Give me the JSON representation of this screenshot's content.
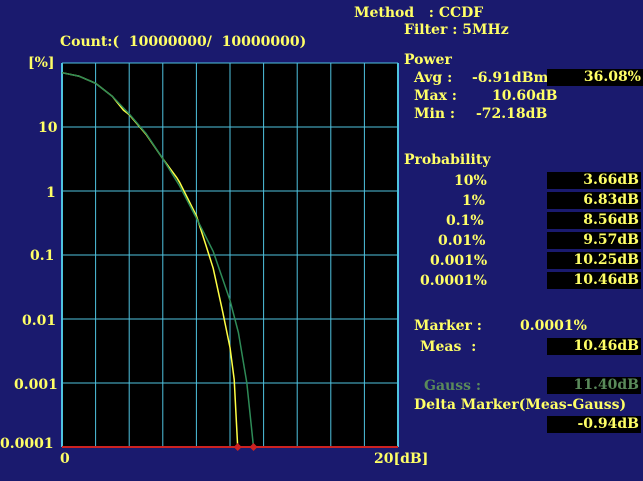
{
  "header": {
    "method": "Method   : CCDF",
    "filter": "Filter : 5MHz",
    "count": "Count:(  10000000/  10000000)"
  },
  "axis": {
    "y_unit": "[%]",
    "y_ticks": [
      "10",
      "1",
      "0.1",
      "0.01",
      "0.001",
      "0.0001"
    ],
    "x_start": "0",
    "x_end": "20[dB]"
  },
  "power": {
    "title": "Power",
    "avg_label": "Avg :",
    "avg_value": "-6.91dBm",
    "avg_percent": "36.08%",
    "max_label": "Max :",
    "max_value": "10.60dB",
    "min_label": "Min :",
    "min_value": "-72.18dB"
  },
  "probability": {
    "title": "Probability",
    "rows": [
      {
        "p": "10%",
        "v": "3.66dB"
      },
      {
        "p": "1%",
        "v": "6.83dB"
      },
      {
        "p": "0.1%",
        "v": "8.56dB"
      },
      {
        "p": "0.01%",
        "v": "9.57dB"
      },
      {
        "p": "0.001%",
        "v": "10.25dB"
      },
      {
        "p": "0.0001%",
        "v": "10.46dB"
      }
    ]
  },
  "marker": {
    "label": "Marker :",
    "value": "0.0001%",
    "meas_label": "Meas  :",
    "meas_value": "10.46dB",
    "gauss_label": "Gauss :",
    "gauss_value": "11.40dB",
    "delta_label": "Delta Marker(Meas-Gauss)",
    "delta_value": "-0.94dB"
  },
  "colors": {
    "background": "#1a1a6e",
    "grid": "#4fc3e0",
    "text": "#ffff66",
    "meas_trace": "#ffff44",
    "gauss_trace": "#2e8b57",
    "baseline": "#cc2222"
  },
  "chart_data": {
    "type": "line",
    "x_range": [
      0,
      20
    ],
    "y_scale": "log",
    "y_range": [
      0.0001,
      100
    ],
    "series": [
      {
        "x": [
          0,
          1,
          2,
          3,
          3.66,
          4,
          5,
          6,
          6.83,
          7,
          8,
          8.56,
          9,
          9.57,
          10,
          10.25,
          10.46
        ],
        "y": [
          36,
          32,
          25,
          16,
          10,
          8.6,
          4.4,
          1.9,
          1,
          0.85,
          0.27,
          0.1,
          0.045,
          0.01,
          0.003,
          0.001,
          0.0001
        ]
      },
      {
        "x": [
          0,
          1,
          2,
          3,
          4,
          5,
          6,
          7,
          8,
          9,
          10,
          10.5,
          11,
          11.4
        ],
        "y": [
          36,
          32,
          25,
          16,
          8.8,
          4.5,
          1.9,
          0.75,
          0.25,
          0.08,
          0.015,
          0.005,
          0.0009,
          0.0001
        ]
      }
    ]
  }
}
